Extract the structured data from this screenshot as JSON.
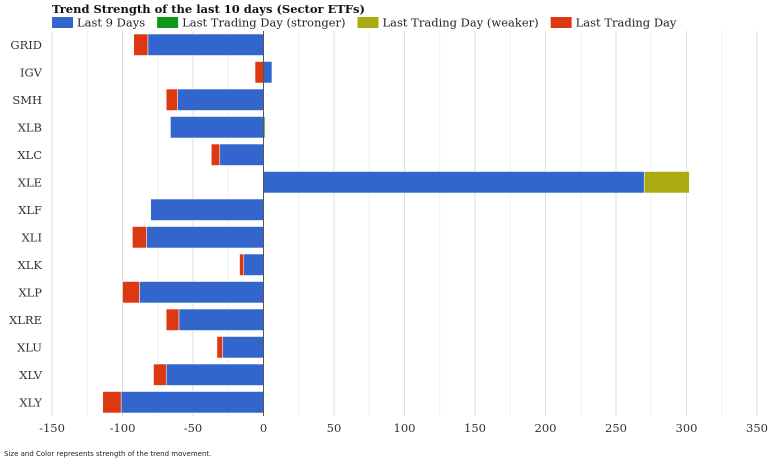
{
  "chart_data": {
    "type": "bar",
    "orientation": "horizontal",
    "stacked": true,
    "title": "Trend Strength of the last 10 days (Sector ETFs)",
    "xlim": [
      -150,
      350
    ],
    "xticks": [
      -150,
      -100,
      -50,
      0,
      50,
      100,
      150,
      200,
      250,
      300,
      350
    ],
    "grid": true,
    "legend_position": "top-left",
    "categories": [
      "GRID",
      "IGV",
      "SMH",
      "XLB",
      "XLC",
      "XLE",
      "XLF",
      "XLI",
      "XLK",
      "XLP",
      "XLRE",
      "XLU",
      "XLV",
      "XLY"
    ],
    "series": [
      {
        "name": "Last 9 Days",
        "color": "#3366cc",
        "values": [
          -82,
          6,
          -61,
          -66,
          -31,
          270,
          -80,
          -83,
          -14,
          -88,
          -60,
          -29,
          -69,
          -101
        ]
      },
      {
        "name": "Last Trading Day (stronger)",
        "color": "#109618",
        "values": [
          0,
          0,
          0,
          1,
          0,
          0,
          0,
          0,
          0,
          0,
          0,
          0,
          0,
          0
        ]
      },
      {
        "name": "Last Trading Day (weaker)",
        "color": "#aaaa11",
        "values": [
          0,
          0,
          0,
          0,
          0,
          32,
          0,
          0,
          0,
          0,
          0,
          0,
          0,
          0
        ]
      },
      {
        "name": "Last Trading Day",
        "color": "#dc3912",
        "values": [
          -10,
          -6,
          -8,
          0,
          -6,
          0,
          0,
          -10,
          -3,
          -12,
          -9,
          -4,
          -9,
          -13
        ]
      }
    ]
  },
  "footnote": "Size and Color represents strength of the trend movement."
}
